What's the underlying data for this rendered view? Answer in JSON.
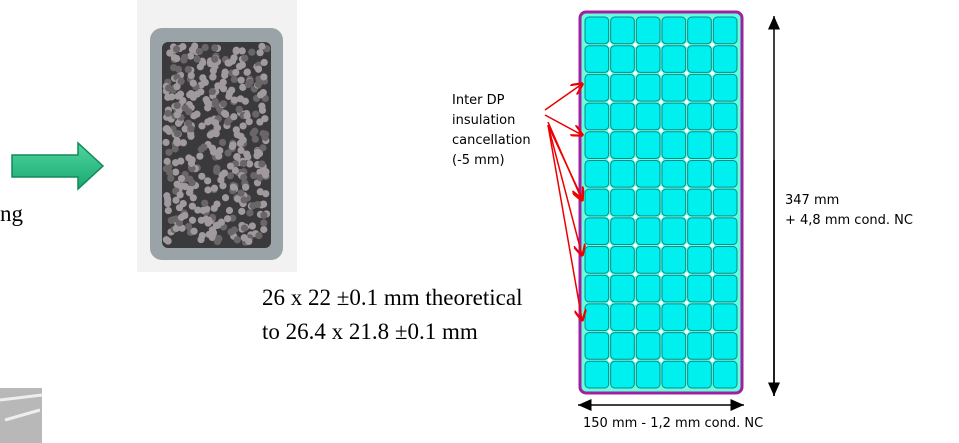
{
  "left_fragment": "ng",
  "caption": {
    "line1": "26 x 22 ±0.1 mm theoretical",
    "line2": "to  26.4 x 21.8 ±0.1 mm"
  },
  "diagram": {
    "insulation_note": [
      "Inter DP",
      "insulation",
      "cancellation",
      "(-5 mm)"
    ],
    "height_label": [
      "347 mm",
      "+ 4,8 mm  cond. NC"
    ],
    "width_label": "150 mm - 1,2 mm  cond. NC"
  }
}
